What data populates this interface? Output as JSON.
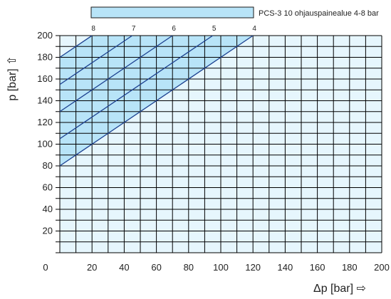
{
  "chart_data": {
    "type": "line",
    "xlabel": "Δp [bar] ⇨",
    "ylabel": "p [bar] ⇧",
    "xlim": [
      0,
      200
    ],
    "ylim": [
      0,
      200
    ],
    "x_ticks": [
      "0",
      "20",
      "40",
      "60",
      "80",
      "100",
      "120",
      "140",
      "160",
      "180",
      "200"
    ],
    "y_ticks": [
      "20",
      "40",
      "60",
      "80",
      "100",
      "120",
      "140",
      "160",
      "180",
      "200"
    ],
    "grid": true,
    "legend": {
      "label": "PCS-3 10 ohjauspainealue 4-8 bar",
      "position": "top",
      "color": "#b8e4f8"
    },
    "colors": {
      "plot_background": "#e6f6fd",
      "band_fill": "#b8e4f8",
      "line": "#1a3f8f",
      "grid": "#000000"
    },
    "series": [
      {
        "label": "4",
        "x": [
          0,
          120
        ],
        "y": [
          80,
          200
        ]
      },
      {
        "label": "5",
        "x": [
          0,
          95
        ],
        "y": [
          105,
          200
        ]
      },
      {
        "label": "6",
        "x": [
          0,
          70
        ],
        "y": [
          130,
          200
        ]
      },
      {
        "label": "7",
        "x": [
          0,
          45
        ],
        "y": [
          155,
          200
        ]
      },
      {
        "label": "8",
        "x": [
          0,
          20
        ],
        "y": [
          180,
          200
        ]
      }
    ]
  }
}
